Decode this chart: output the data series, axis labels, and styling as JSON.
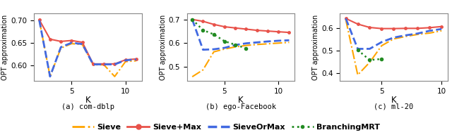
{
  "subplots": [
    {
      "title": "(a) com-dblp",
      "ylabel": "OPT approximation",
      "xlabel": "K",
      "xlim": [
        1.5,
        11.5
      ],
      "ylim": [
        0.565,
        0.715
      ],
      "yticks": [
        0.6,
        0.65,
        0.7
      ],
      "xticks": [
        5,
        10
      ],
      "series": {
        "Sieve": {
          "x": [
            2,
            3,
            4,
            5,
            6,
            7,
            8,
            9,
            10,
            11
          ],
          "y": [
            0.7,
            0.575,
            0.638,
            0.648,
            0.646,
            0.601,
            0.601,
            0.575,
            0.608,
            0.61
          ],
          "color": "#FFA500",
          "linestyle": "-.",
          "marker": null,
          "linewidth": 1.5
        },
        "Sieve+Max": {
          "x": [
            2,
            3,
            4,
            5,
            6,
            7,
            8,
            9,
            10,
            11
          ],
          "y": [
            0.701,
            0.658,
            0.653,
            0.655,
            0.651,
            0.603,
            0.603,
            0.603,
            0.612,
            0.614
          ],
          "color": "#E8524A",
          "linestyle": "-",
          "marker": "o",
          "markersize": 2.5,
          "linewidth": 1.5
        },
        "SieveOrMax": {
          "x": [
            2,
            3,
            4,
            5,
            6,
            7,
            8,
            9,
            10,
            11
          ],
          "y": [
            0.7,
            0.575,
            0.64,
            0.65,
            0.647,
            0.602,
            0.602,
            0.602,
            0.611,
            0.613
          ],
          "color": "#4169E1",
          "linestyle": "--",
          "marker": null,
          "linewidth": 2.0
        },
        "BranchingMRT": {
          "x": [
            2
          ],
          "y": [
            0.7
          ],
          "color": "#228B22",
          "linestyle": ":",
          "marker": null,
          "linewidth": 1.5
        }
      }
    },
    {
      "title": "(b) ego-Facebook",
      "ylabel": "OPT approximation",
      "xlabel": "K",
      "xlim": [
        1.5,
        11.5
      ],
      "ylim": [
        0.44,
        0.725
      ],
      "yticks": [
        0.5,
        0.6,
        0.7
      ],
      "xticks": [
        5,
        10
      ],
      "series": {
        "Sieve": {
          "x": [
            2,
            3,
            4,
            5,
            6,
            7,
            8,
            9,
            10,
            11
          ],
          "y": [
            0.458,
            0.487,
            0.563,
            0.575,
            0.584,
            0.59,
            0.594,
            0.597,
            0.6,
            0.603
          ],
          "color": "#FFA500",
          "linestyle": "-.",
          "marker": null,
          "linewidth": 1.5
        },
        "Sieve+Max": {
          "x": [
            2,
            3,
            4,
            5,
            6,
            7,
            8,
            9,
            10,
            11
          ],
          "y": [
            0.7,
            0.692,
            0.679,
            0.669,
            0.664,
            0.659,
            0.654,
            0.651,
            0.648,
            0.645
          ],
          "color": "#E8524A",
          "linestyle": "-",
          "marker": "o",
          "markersize": 2.5,
          "linewidth": 1.5
        },
        "SieveOrMax": {
          "x": [
            2,
            3,
            4,
            5,
            6,
            7,
            8,
            9,
            10,
            11
          ],
          "y": [
            0.7,
            0.572,
            0.574,
            0.58,
            0.592,
            0.599,
            0.603,
            0.607,
            0.61,
            0.612
          ],
          "color": "#4169E1",
          "linestyle": "--",
          "marker": null,
          "linewidth": 2.0
        },
        "BranchingMRT": {
          "x": [
            2,
            3,
            4,
            5,
            6,
            7
          ],
          "y": [
            0.7,
            0.655,
            0.637,
            0.608,
            0.593,
            0.578
          ],
          "color": "#228B22",
          "linestyle": ":",
          "marker": ".",
          "markersize": 6,
          "linewidth": 1.8
        }
      }
    },
    {
      "title": "(c) ml-20",
      "ylabel": "OPT approximation",
      "xlabel": "K",
      "xlim": [
        1.5,
        10.5
      ],
      "ylim": [
        0.365,
        0.665
      ],
      "yticks": [
        0.4,
        0.5,
        0.6
      ],
      "xticks": [
        5,
        10
      ],
      "series": {
        "Sieve": {
          "x": [
            2,
            3,
            4,
            5,
            6,
            7,
            8,
            9,
            10
          ],
          "y": [
            0.638,
            0.392,
            0.448,
            0.522,
            0.552,
            0.563,
            0.572,
            0.578,
            0.588
          ],
          "color": "#FFA500",
          "linestyle": "-.",
          "marker": null,
          "linewidth": 1.5
        },
        "Sieve+Max": {
          "x": [
            2,
            3,
            4,
            5,
            6,
            7,
            8,
            9,
            10
          ],
          "y": [
            0.643,
            0.618,
            0.603,
            0.598,
            0.598,
            0.599,
            0.599,
            0.602,
            0.607
          ],
          "color": "#E8524A",
          "linestyle": "-",
          "marker": "o",
          "markersize": 2.5,
          "linewidth": 1.5
        },
        "SieveOrMax": {
          "x": [
            2,
            3,
            4,
            5,
            6,
            7,
            8,
            9,
            10
          ],
          "y": [
            0.643,
            0.508,
            0.508,
            0.538,
            0.558,
            0.568,
            0.576,
            0.588,
            0.596
          ],
          "color": "#4169E1",
          "linestyle": "--",
          "marker": null,
          "linewidth": 2.0
        },
        "BranchingMRT": {
          "x": [
            3,
            4,
            5
          ],
          "y": [
            0.503,
            0.458,
            0.463
          ],
          "color": "#228B22",
          "linestyle": ":",
          "marker": ".",
          "markersize": 6,
          "linewidth": 1.8
        }
      }
    }
  ],
  "legend": {
    "entries": [
      "Sieve",
      "Sieve+Max",
      "SieveOrMax",
      "BranchingMRT"
    ],
    "colors": [
      "#FFA500",
      "#E8524A",
      "#4169E1",
      "#228B22"
    ],
    "linestyles": [
      "-.",
      "-",
      "--",
      ":"
    ],
    "markers": [
      null,
      "o",
      null,
      "."
    ],
    "markersizes": [
      0,
      5,
      0,
      6
    ],
    "linewidths": [
      2.0,
      2.0,
      2.5,
      2.0
    ]
  }
}
